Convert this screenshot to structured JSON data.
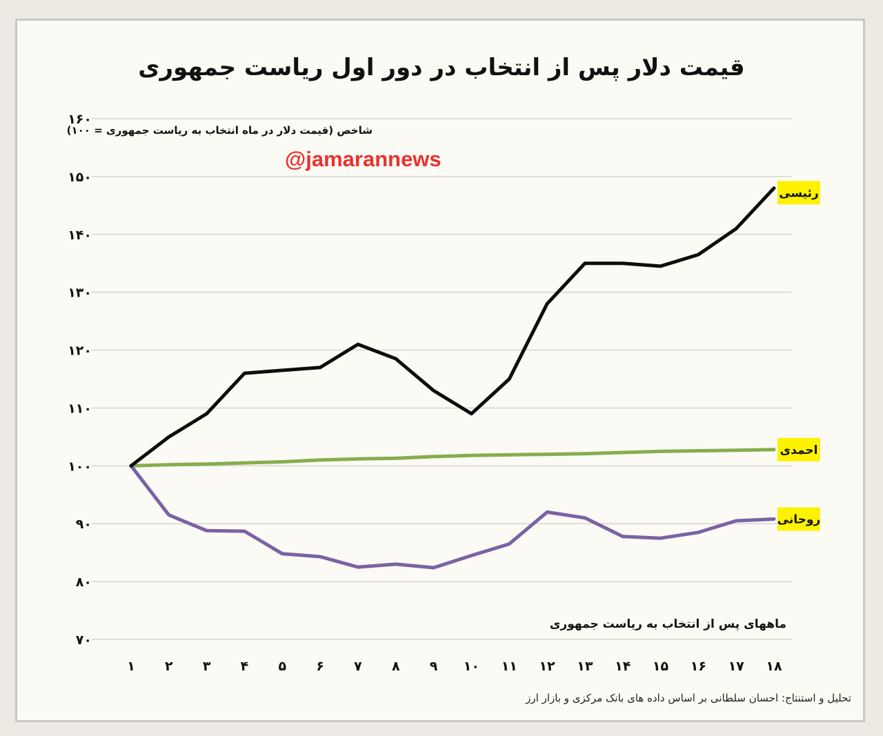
{
  "chart_data": {
    "type": "line",
    "title": "قیمت دلار پس از انتخاب در دور اول ریاست جمهوری",
    "ylabel": "شاخص (قیمت دلار در ماه انتخاب به ریاست جمهوری = ۱۰۰)",
    "xlabel": "ماههای پس از انتخاب به ریاست جمهوری",
    "ylim": [
      70,
      160
    ],
    "y_ticks": [
      160,
      150,
      140,
      130,
      120,
      110,
      100,
      90,
      80,
      70
    ],
    "y_tick_labels": [
      "۱۶۰",
      "۱۵۰",
      "۱۴۰",
      "۱۳۰",
      "۱۲۰",
      "۱۱۰",
      "۱۰۰",
      "۹۰",
      "۸۰",
      "۷۰"
    ],
    "x": [
      1,
      2,
      3,
      4,
      5,
      6,
      7,
      8,
      9,
      10,
      11,
      12,
      13,
      14,
      15,
      16,
      17,
      18
    ],
    "x_tick_labels": [
      "۱",
      "۲",
      "۳",
      "۴",
      "۵",
      "۶",
      "۷",
      "۸",
      "۹",
      "۱۰",
      "۱۱",
      "۱۲",
      "۱۳",
      "۱۴",
      "۱۵",
      "۱۶",
      "۱۷",
      "۱۸"
    ],
    "grid": true,
    "series": [
      {
        "name": "رئیسی",
        "color": "#0d0d0d",
        "values": [
          100,
          105,
          109,
          116,
          116.5,
          117,
          121,
          118.5,
          113,
          109,
          115,
          128,
          135,
          135,
          134.5,
          136.5,
          141,
          148
        ]
      },
      {
        "name": "احمدی",
        "color": "#86ad4d",
        "values": [
          100,
          100.2,
          100.3,
          100.5,
          100.7,
          101,
          101.2,
          101.3,
          101.6,
          101.8,
          101.9,
          102,
          102.1,
          102.3,
          102.5,
          102.6,
          102.7,
          102.8
        ]
      },
      {
        "name": "روحانی",
        "color": "#7b62a3",
        "values": [
          100,
          91.5,
          88.8,
          88.7,
          84.8,
          84.3,
          82.5,
          83,
          82.4,
          84.5,
          86.5,
          92,
          91,
          87.8,
          87.5,
          88.5,
          90.5,
          90.8
        ]
      }
    ],
    "legend_placement": "right-end-of-lines"
  },
  "watermark": "@jamarannews",
  "source": "تحلیل و استنتاج: احسان سلطانی بر اساس داده های بانک مرکزی و بازار ارز"
}
